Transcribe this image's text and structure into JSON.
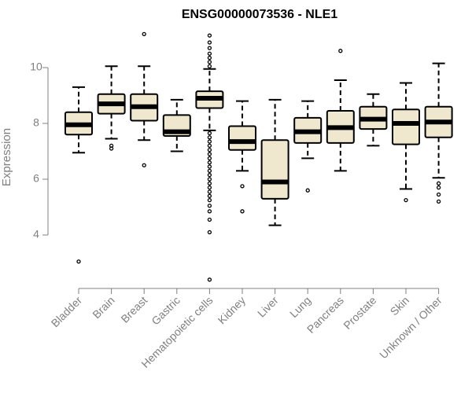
{
  "chart_data": {
    "type": "boxplot",
    "title": "ENSG00000073536 - NLE1",
    "xlabel": "",
    "ylabel": "Expression",
    "ylim": [
      2.2,
      11.5
    ],
    "yticks": [
      4,
      6,
      8,
      10
    ],
    "box_fill": "#efe8cf",
    "categories": [
      "Bladder",
      "Brain",
      "Breast",
      "Gastric",
      "Hematopoietic cells",
      "Kidney",
      "Liver",
      "Lung",
      "Pancreas",
      "Prostate",
      "Skin",
      "Unknown / Other"
    ],
    "boxes": [
      {
        "whisker_low": 6.95,
        "q1": 7.6,
        "median": 7.95,
        "q3": 8.4,
        "whisker_high": 9.3,
        "outliers": [
          3.05
        ]
      },
      {
        "whisker_low": 7.45,
        "q1": 8.35,
        "median": 8.7,
        "q3": 9.05,
        "whisker_high": 10.05,
        "outliers": [
          7.1,
          7.2
        ]
      },
      {
        "whisker_low": 7.4,
        "q1": 8.1,
        "median": 8.6,
        "q3": 9.05,
        "whisker_high": 10.05,
        "outliers": [
          6.5,
          11.2
        ]
      },
      {
        "whisker_low": 7.0,
        "q1": 7.55,
        "median": 7.7,
        "q3": 8.3,
        "whisker_high": 8.85,
        "outliers": []
      },
      {
        "whisker_low": 7.75,
        "q1": 8.55,
        "median": 8.9,
        "q3": 9.15,
        "whisker_high": 9.95,
        "outliers": [
          2.4,
          4.1,
          4.55,
          4.85,
          5.05,
          5.25,
          5.4,
          5.55,
          5.7,
          5.85,
          6.0,
          6.15,
          6.3,
          6.45,
          6.6,
          6.75,
          6.9,
          7.05,
          7.2,
          7.35,
          7.5,
          7.65,
          10.05,
          10.2,
          10.35,
          10.5,
          10.7,
          10.9,
          11.15
        ]
      },
      {
        "whisker_low": 6.3,
        "q1": 7.05,
        "median": 7.35,
        "q3": 7.9,
        "whisker_high": 8.8,
        "outliers": [
          4.85,
          5.75
        ]
      },
      {
        "whisker_low": 4.35,
        "q1": 5.3,
        "median": 5.9,
        "q3": 7.4,
        "whisker_high": 8.85,
        "outliers": []
      },
      {
        "whisker_low": 6.75,
        "q1": 7.3,
        "median": 7.7,
        "q3": 8.2,
        "whisker_high": 8.8,
        "outliers": [
          5.6
        ]
      },
      {
        "whisker_low": 6.3,
        "q1": 7.3,
        "median": 7.85,
        "q3": 8.45,
        "whisker_high": 9.55,
        "outliers": [
          10.6
        ]
      },
      {
        "whisker_low": 7.2,
        "q1": 7.8,
        "median": 8.15,
        "q3": 8.6,
        "whisker_high": 9.05,
        "outliers": []
      },
      {
        "whisker_low": 5.65,
        "q1": 7.25,
        "median": 8.0,
        "q3": 8.5,
        "whisker_high": 9.45,
        "outliers": [
          5.25
        ]
      },
      {
        "whisker_low": 6.05,
        "q1": 7.5,
        "median": 8.05,
        "q3": 8.6,
        "whisker_high": 10.15,
        "outliers": [
          5.2,
          5.45,
          5.7,
          5.85
        ]
      }
    ]
  }
}
